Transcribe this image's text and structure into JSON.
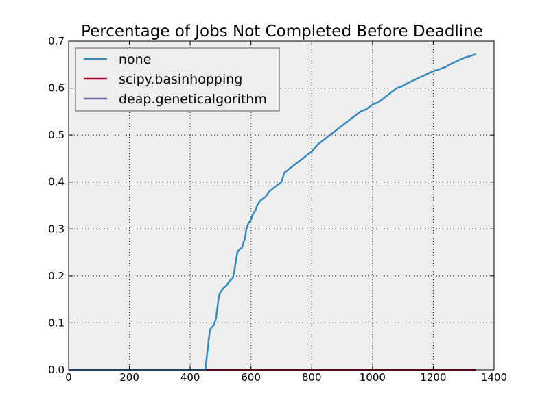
{
  "chart_data": {
    "type": "line",
    "title": "Percentage of Jobs Not Completed Before Deadline",
    "xlabel": "",
    "ylabel": "",
    "xlim": [
      0,
      1400
    ],
    "ylim": [
      0.0,
      0.7
    ],
    "xticks": [
      0,
      200,
      400,
      600,
      800,
      1000,
      1200,
      1400
    ],
    "yticks": [
      0.0,
      0.1,
      0.2,
      0.3,
      0.4,
      0.5,
      0.6,
      0.7
    ],
    "xtick_labels": [
      "0",
      "200",
      "400",
      "600",
      "800",
      "1000",
      "1200",
      "1400"
    ],
    "ytick_labels": [
      "0.0",
      "0.1",
      "0.2",
      "0.3",
      "0.4",
      "0.5",
      "0.6",
      "0.7"
    ],
    "grid": true,
    "legend_position": "top-left",
    "background": "#eeeeee",
    "series": [
      {
        "name": "none",
        "color": "#348abd",
        "x": [
          0,
          450,
          455,
          460,
          465,
          470,
          478,
          480,
          485,
          490,
          495,
          500,
          505,
          510,
          520,
          530,
          540,
          545,
          550,
          555,
          560,
          565,
          570,
          580,
          585,
          590,
          595,
          600,
          605,
          610,
          615,
          620,
          625,
          630,
          640,
          650,
          660,
          680,
          700,
          710,
          720,
          740,
          760,
          780,
          800,
          820,
          840,
          860,
          880,
          900,
          920,
          940,
          960,
          980,
          1000,
          1020,
          1040,
          1060,
          1080,
          1100,
          1120,
          1140,
          1160,
          1180,
          1200,
          1220,
          1240,
          1260,
          1280,
          1300,
          1320,
          1340
        ],
        "values": [
          0.0,
          0.0,
          0.03,
          0.06,
          0.085,
          0.09,
          0.095,
          0.1,
          0.11,
          0.135,
          0.16,
          0.165,
          0.17,
          0.175,
          0.18,
          0.19,
          0.195,
          0.21,
          0.23,
          0.25,
          0.255,
          0.258,
          0.26,
          0.28,
          0.3,
          0.31,
          0.315,
          0.32,
          0.33,
          0.335,
          0.34,
          0.35,
          0.355,
          0.36,
          0.365,
          0.37,
          0.38,
          0.39,
          0.4,
          0.42,
          0.425,
          0.435,
          0.445,
          0.455,
          0.465,
          0.48,
          0.49,
          0.5,
          0.51,
          0.52,
          0.53,
          0.54,
          0.55,
          0.555,
          0.565,
          0.57,
          0.58,
          0.59,
          0.6,
          0.605,
          0.612,
          0.618,
          0.624,
          0.63,
          0.636,
          0.64,
          0.645,
          0.652,
          0.658,
          0.664,
          0.668,
          0.672
        ]
      },
      {
        "name": "scipy.basinhopping",
        "color": "#a60628",
        "x": [
          0,
          1340
        ],
        "values": [
          0.0,
          0.0
        ]
      },
      {
        "name": "deap.geneticalgorithm",
        "color": "#7a68a6",
        "x": [
          0,
          1340
        ],
        "values": [
          0.0,
          0.0
        ]
      }
    ]
  }
}
